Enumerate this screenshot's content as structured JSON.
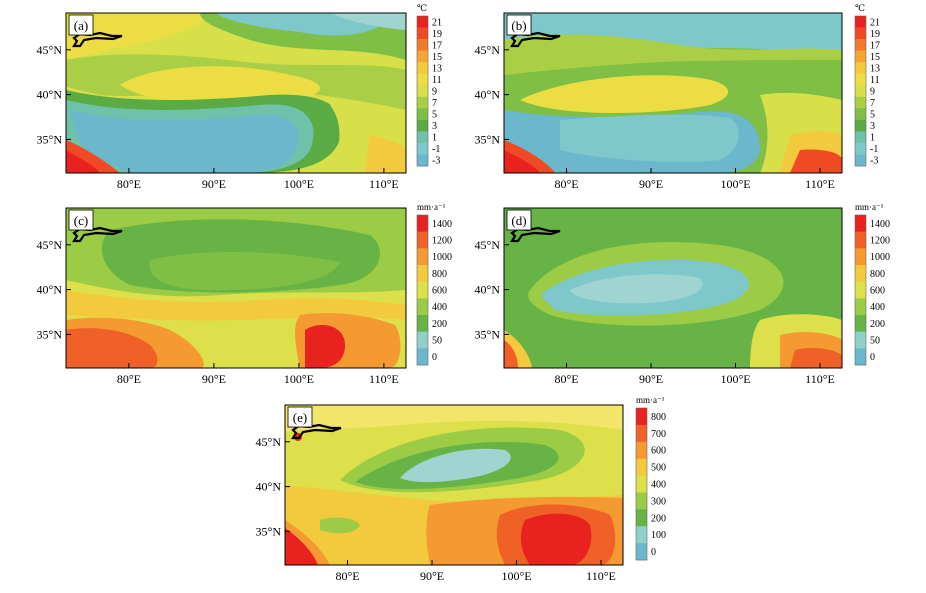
{
  "panels": [
    {
      "id": "a",
      "label": "(a)",
      "unit": "℃",
      "colorbar": [
        "21",
        "19",
        "17",
        "15",
        "13",
        "11",
        "9",
        "7",
        "5",
        "3",
        "1",
        "-1",
        "-3"
      ]
    },
    {
      "id": "b",
      "label": "(b)",
      "unit": "℃",
      "colorbar": [
        "21",
        "19",
        "17",
        "15",
        "13",
        "11",
        "9",
        "7",
        "5",
        "3",
        "1",
        "-1",
        "-3"
      ]
    },
    {
      "id": "c",
      "label": "(c)",
      "unit": "mm·a⁻¹",
      "colorbar": [
        "1400",
        "1200",
        "1000",
        "800",
        "600",
        "400",
        "200",
        "50",
        "0"
      ]
    },
    {
      "id": "d",
      "label": "(d)",
      "unit": "mm·a⁻¹",
      "colorbar": [
        "1400",
        "1200",
        "1000",
        "800",
        "600",
        "400",
        "200",
        "50",
        "0"
      ]
    },
    {
      "id": "e",
      "label": "(e)",
      "unit": "mm·a⁻¹",
      "colorbar": [
        "800",
        "700",
        "600",
        "500",
        "400",
        "300",
        "200",
        "100",
        "0"
      ]
    }
  ],
  "lat_ticks": [
    "45°N",
    "40°N",
    "35°N"
  ],
  "lon_ticks": [
    "80°E",
    "90°E",
    "100°E",
    "110°E"
  ],
  "colors": {
    "ramp13": [
      "#e8231f",
      "#ef4a23",
      "#f37a2a",
      "#f5a533",
      "#f3c93e",
      "#eddd45",
      "#d8e049",
      "#aacf47",
      "#7fbf45",
      "#5aab44",
      "#6fc2a9",
      "#7ec8cc",
      "#6bb8cc"
    ],
    "ramp9": [
      "#e8231f",
      "#ef6127",
      "#f59a31",
      "#f3c93e",
      "#dde04a",
      "#9ccb46",
      "#68b346",
      "#8fd0c9",
      "#6bb8cc"
    ]
  }
}
